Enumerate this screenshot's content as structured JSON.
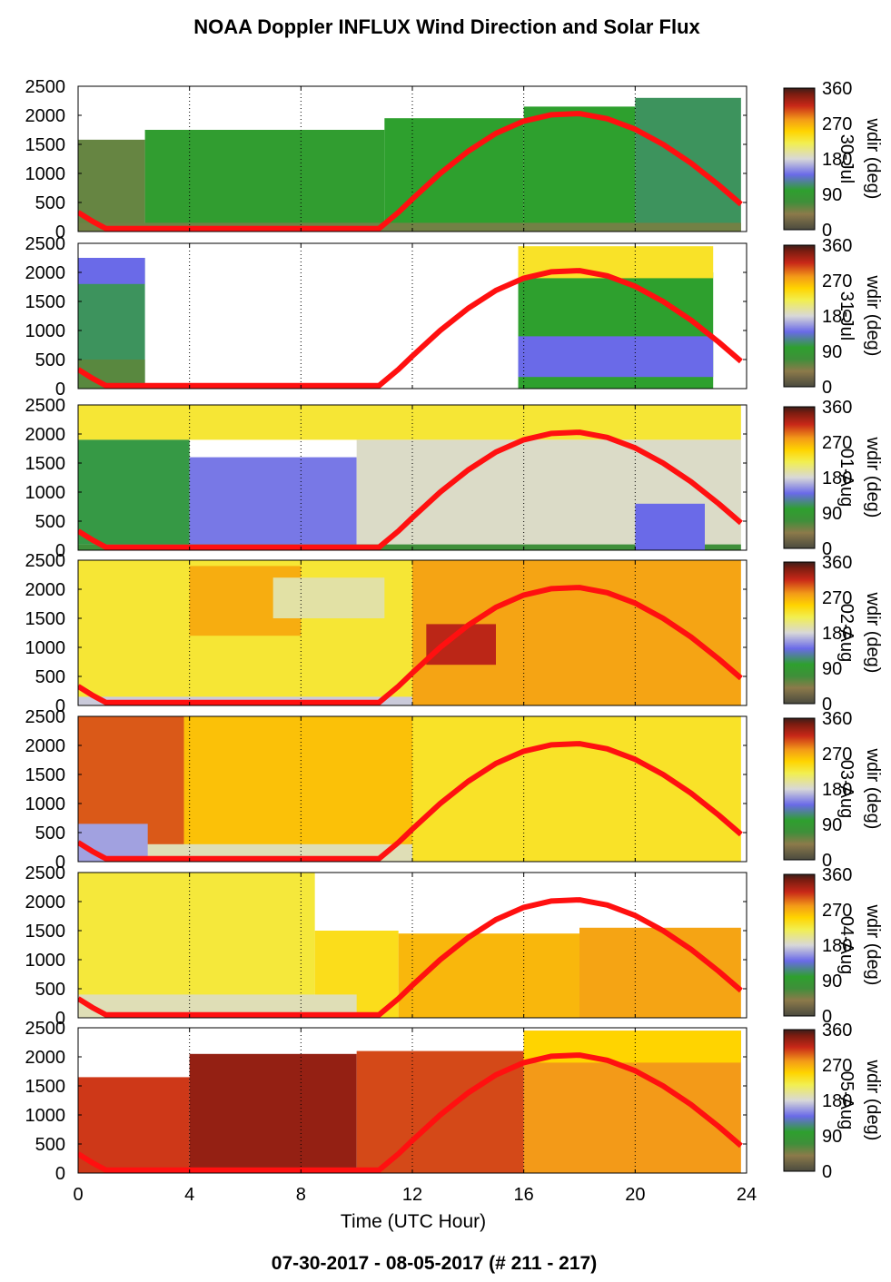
{
  "title": "NOAA Doppler INFLUX Wind Direction and Solar Flux",
  "footer": "07-30-2017 - 08-05-2017   (# 211 - 217)",
  "xlabel": "Time (UTC Hour)",
  "colorbar": {
    "label": "wdir (deg)",
    "ticks": [
      0,
      90,
      180,
      270,
      360
    ],
    "stops": [
      {
        "v": 0,
        "c": "#4a4a3f"
      },
      {
        "v": 40,
        "c": "#8c7a4a"
      },
      {
        "v": 70,
        "c": "#3f8f3a"
      },
      {
        "v": 100,
        "c": "#2ea02e"
      },
      {
        "v": 140,
        "c": "#6a6ae8"
      },
      {
        "v": 180,
        "c": "#d8d8d8"
      },
      {
        "v": 220,
        "c": "#f2ef50"
      },
      {
        "v": 250,
        "c": "#ffd400"
      },
      {
        "v": 280,
        "c": "#f39a18"
      },
      {
        "v": 315,
        "c": "#c82818"
      },
      {
        "v": 345,
        "c": "#7a1c10"
      },
      {
        "v": 360,
        "c": "#3a1e1a"
      }
    ]
  },
  "chart_data": {
    "type": "heatmap",
    "xlim": [
      0,
      24
    ],
    "ylim": [
      0,
      2500
    ],
    "xticks": [
      0,
      4,
      8,
      12,
      16,
      20,
      24
    ],
    "yticks": [
      0,
      500,
      1000,
      1500,
      2000,
      2500
    ],
    "solar_flux_curve": {
      "color": "#ff1010",
      "x": [
        0,
        0.5,
        1,
        10.8,
        11.5,
        12,
        13,
        14,
        15,
        16,
        17,
        18,
        19,
        20,
        21,
        22,
        23,
        23.8
      ],
      "y": [
        330,
        180,
        50,
        50,
        330,
        560,
        1000,
        1380,
        1690,
        1900,
        2010,
        2030,
        1940,
        1760,
        1500,
        1180,
        800,
        470
      ]
    },
    "panels": [
      {
        "name": "30-Jul",
        "blocks": [
          {
            "x0": 0,
            "x1": 2.4,
            "y0": 0,
            "y1": 1580,
            "d": 55
          },
          {
            "x0": 2.4,
            "x1": 11,
            "y0": 0,
            "y1": 1750,
            "d": 95
          },
          {
            "x0": 11,
            "x1": 16,
            "y0": 0,
            "y1": 1950,
            "d": 100
          },
          {
            "x0": 16,
            "x1": 20,
            "y0": 0,
            "y1": 2150,
            "d": 100
          },
          {
            "x0": 20,
            "x1": 23.8,
            "y0": 0,
            "y1": 2300,
            "d": 110
          },
          {
            "x0": 0,
            "x1": 23.8,
            "y0": 0,
            "y1": 150,
            "d": 50
          }
        ]
      },
      {
        "name": "31-Jul",
        "blocks": [
          {
            "x0": 0,
            "x1": 2.4,
            "y0": 0,
            "y1": 2250,
            "d": 110
          },
          {
            "x0": 0,
            "x1": 2.4,
            "y0": 1800,
            "y1": 2250,
            "d": 140
          },
          {
            "x0": 0,
            "x1": 2.4,
            "y0": 0,
            "y1": 500,
            "d": 60
          },
          {
            "x0": 15.8,
            "x1": 22.8,
            "y0": 0,
            "y1": 2000,
            "d": 100
          },
          {
            "x0": 15.8,
            "x1": 22.8,
            "y0": 1900,
            "y1": 2450,
            "d": 235
          },
          {
            "x0": 15.8,
            "x1": 22.8,
            "y0": 200,
            "y1": 900,
            "d": 140
          }
        ]
      },
      {
        "name": "01-Aug",
        "blocks": [
          {
            "x0": 0,
            "x1": 23.8,
            "y0": 1900,
            "y1": 2500,
            "d": 230
          },
          {
            "x0": 0,
            "x1": 4,
            "y0": 100,
            "y1": 1900,
            "d": 105
          },
          {
            "x0": 4,
            "x1": 10,
            "y0": 100,
            "y1": 1600,
            "d": 145
          },
          {
            "x0": 10,
            "x1": 23.8,
            "y0": 100,
            "y1": 1900,
            "d": 185
          },
          {
            "x0": 0,
            "x1": 23.8,
            "y0": 0,
            "y1": 100,
            "d": 70
          },
          {
            "x0": 20,
            "x1": 22.5,
            "y0": 0,
            "y1": 800,
            "d": 140
          }
        ]
      },
      {
        "name": "02-Aug",
        "blocks": [
          {
            "x0": 0,
            "x1": 12,
            "y0": 0,
            "y1": 2500,
            "d": 230
          },
          {
            "x0": 4,
            "x1": 8,
            "y0": 1200,
            "y1": 2400,
            "d": 270
          },
          {
            "x0": 7,
            "x1": 11,
            "y0": 1500,
            "y1": 2200,
            "d": 195
          },
          {
            "x0": 12,
            "x1": 23.8,
            "y0": 0,
            "y1": 2500,
            "d": 275
          },
          {
            "x0": 12.5,
            "x1": 15,
            "y0": 700,
            "y1": 1400,
            "d": 320
          },
          {
            "x0": 0,
            "x1": 12,
            "y0": 0,
            "y1": 150,
            "d": 175
          }
        ]
      },
      {
        "name": "03-Aug",
        "blocks": [
          {
            "x0": 0,
            "x1": 3.8,
            "y0": 0,
            "y1": 2500,
            "d": 300
          },
          {
            "x0": 3.8,
            "x1": 12,
            "y0": 0,
            "y1": 2500,
            "d": 260
          },
          {
            "x0": 12,
            "x1": 23.8,
            "y0": 0,
            "y1": 2500,
            "d": 235
          },
          {
            "x0": 0,
            "x1": 12,
            "y0": 0,
            "y1": 300,
            "d": 190
          },
          {
            "x0": 0,
            "x1": 2.5,
            "y0": 0,
            "y1": 650,
            "d": 160
          }
        ]
      },
      {
        "name": "04-Aug",
        "blocks": [
          {
            "x0": 0,
            "x1": 8.5,
            "y0": 0,
            "y1": 2500,
            "d": 228
          },
          {
            "x0": 8.5,
            "x1": 11.5,
            "y0": 0,
            "y1": 1500,
            "d": 240
          },
          {
            "x0": 11.5,
            "x1": 18,
            "y0": 0,
            "y1": 1450,
            "d": 265
          },
          {
            "x0": 18,
            "x1": 23.8,
            "y0": 0,
            "y1": 1550,
            "d": 275
          },
          {
            "x0": 0,
            "x1": 10,
            "y0": 0,
            "y1": 400,
            "d": 190
          }
        ]
      },
      {
        "name": "05-Aug",
        "blocks": [
          {
            "x0": 0,
            "x1": 4,
            "y0": 0,
            "y1": 1650,
            "d": 310
          },
          {
            "x0": 4,
            "x1": 10,
            "y0": 0,
            "y1": 2050,
            "d": 335
          },
          {
            "x0": 10,
            "x1": 16,
            "y0": 0,
            "y1": 2100,
            "d": 305
          },
          {
            "x0": 16,
            "x1": 23.8,
            "y0": 0,
            "y1": 2450,
            "d": 280
          },
          {
            "x0": 16,
            "x1": 23.8,
            "y0": 1900,
            "y1": 2450,
            "d": 250
          }
        ]
      }
    ]
  }
}
